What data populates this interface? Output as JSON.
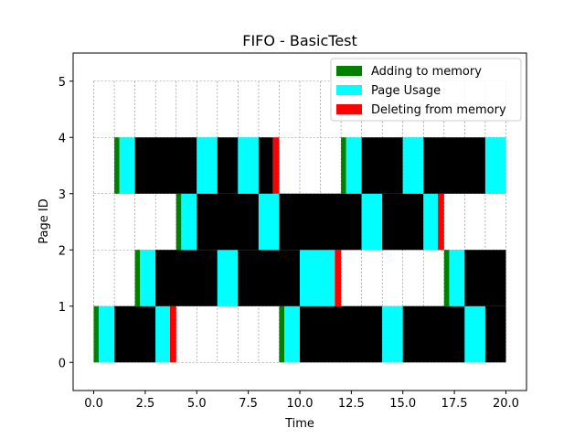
{
  "chart_data": {
    "type": "bar",
    "title": "FIFO - BasicTest",
    "xlabel": "Time",
    "ylabel": "Page ID",
    "xlim": [
      -1,
      21
    ],
    "ylim": [
      -0.5,
      5.5
    ],
    "xticks": [
      0.0,
      2.5,
      5.0,
      7.5,
      10.0,
      12.5,
      15.0,
      17.5,
      20.0
    ],
    "xtick_labels": [
      "0.0",
      "2.5",
      "5.0",
      "7.5",
      "10.0",
      "12.5",
      "15.0",
      "17.5",
      "20.0"
    ],
    "yticks": [
      0,
      1,
      2,
      3,
      4,
      5
    ],
    "ytick_labels": [
      "0",
      "1",
      "2",
      "3",
      "4",
      "5"
    ],
    "grid": true,
    "grid_x_positions": [
      0,
      1,
      2,
      3,
      4,
      5,
      6,
      7,
      8,
      9,
      10,
      11,
      12,
      13,
      14,
      15,
      16,
      17,
      18,
      19,
      20
    ],
    "grid_y_positions": [
      0,
      1,
      2,
      3,
      4,
      5
    ],
    "legend_position": "top-right",
    "colors": {
      "add": "#008000",
      "usage": "#00ffff",
      "delete": "#ff0000",
      "resident": "#000000"
    },
    "series": [
      {
        "name": "Adding to memory",
        "color": "#008000"
      },
      {
        "name": "Page Usage",
        "color": "#00ffff"
      },
      {
        "name": "Deleting from memory",
        "color": "#ff0000"
      }
    ],
    "band_rows": [
      {
        "y_from": 0,
        "y_to": 1,
        "segments": [
          {
            "kind": "add",
            "start": 0,
            "end": 0.25
          },
          {
            "kind": "usage",
            "start": 0.25,
            "end": 1
          },
          {
            "kind": "resident",
            "start": 1,
            "end": 3
          },
          {
            "kind": "usage",
            "start": 3,
            "end": 3.7
          },
          {
            "kind": "delete",
            "start": 3.7,
            "end": 4
          },
          {
            "kind": "add",
            "start": 9,
            "end": 9.25
          },
          {
            "kind": "usage",
            "start": 9.25,
            "end": 10
          },
          {
            "kind": "resident",
            "start": 10,
            "end": 14
          },
          {
            "kind": "usage",
            "start": 14,
            "end": 15
          },
          {
            "kind": "resident",
            "start": 15,
            "end": 18
          },
          {
            "kind": "usage",
            "start": 18,
            "end": 19
          },
          {
            "kind": "resident",
            "start": 19,
            "end": 20
          }
        ]
      },
      {
        "y_from": 1,
        "y_to": 2,
        "segments": [
          {
            "kind": "add",
            "start": 2,
            "end": 2.25
          },
          {
            "kind": "usage",
            "start": 2.25,
            "end": 3
          },
          {
            "kind": "resident",
            "start": 3,
            "end": 6
          },
          {
            "kind": "usage",
            "start": 6,
            "end": 7
          },
          {
            "kind": "resident",
            "start": 7,
            "end": 10
          },
          {
            "kind": "usage",
            "start": 10,
            "end": 11.7
          },
          {
            "kind": "delete",
            "start": 11.7,
            "end": 12
          },
          {
            "kind": "add",
            "start": 17,
            "end": 17.25
          },
          {
            "kind": "usage",
            "start": 17.25,
            "end": 18
          },
          {
            "kind": "resident",
            "start": 18,
            "end": 20
          }
        ]
      },
      {
        "y_from": 2,
        "y_to": 3,
        "segments": [
          {
            "kind": "add",
            "start": 4,
            "end": 4.25
          },
          {
            "kind": "usage",
            "start": 4.25,
            "end": 5
          },
          {
            "kind": "resident",
            "start": 5,
            "end": 8
          },
          {
            "kind": "usage",
            "start": 8,
            "end": 9
          },
          {
            "kind": "resident",
            "start": 9,
            "end": 13
          },
          {
            "kind": "usage",
            "start": 13,
            "end": 14
          },
          {
            "kind": "resident",
            "start": 14,
            "end": 16
          },
          {
            "kind": "usage",
            "start": 16,
            "end": 16.7
          },
          {
            "kind": "delete",
            "start": 16.7,
            "end": 17
          }
        ]
      },
      {
        "y_from": 3,
        "y_to": 4,
        "segments": [
          {
            "kind": "add",
            "start": 1,
            "end": 1.25
          },
          {
            "kind": "usage",
            "start": 1.25,
            "end": 2
          },
          {
            "kind": "resident",
            "start": 2,
            "end": 5
          },
          {
            "kind": "usage",
            "start": 5,
            "end": 6
          },
          {
            "kind": "resident",
            "start": 6,
            "end": 7
          },
          {
            "kind": "usage",
            "start": 7,
            "end": 8
          },
          {
            "kind": "resident",
            "start": 8,
            "end": 8.7
          },
          {
            "kind": "delete",
            "start": 8.7,
            "end": 9
          },
          {
            "kind": "add",
            "start": 12,
            "end": 12.25
          },
          {
            "kind": "usage",
            "start": 12.25,
            "end": 13
          },
          {
            "kind": "resident",
            "start": 13,
            "end": 15
          },
          {
            "kind": "usage",
            "start": 15,
            "end": 16
          },
          {
            "kind": "resident",
            "start": 16,
            "end": 19
          },
          {
            "kind": "usage",
            "start": 19,
            "end": 20
          }
        ]
      }
    ]
  }
}
